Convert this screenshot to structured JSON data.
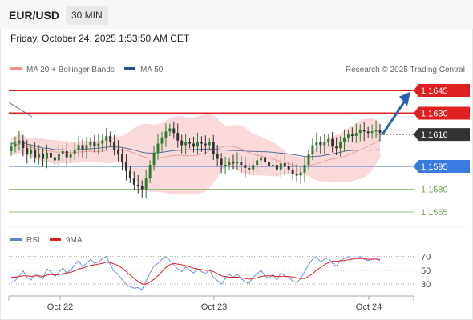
{
  "header": {
    "symbol": "EUR/USD",
    "timeframe": "30 MIN",
    "datetime": "Friday, October 24, 2025 1:53:50 AM CET"
  },
  "legend": {
    "ma20_bb": "MA 20 + Bollinger Bands",
    "ma50": "MA 50",
    "source": "Research © 2025 Trading Central",
    "rsi": "RSI",
    "ma9": "9MA"
  },
  "colors": {
    "resistance": "#e02020",
    "support": "#3a7be0",
    "minor_support": "#6aa84f",
    "current": "#333333",
    "candle_up": "#2e7d32",
    "candle_down": "#333333",
    "bollinger_fill": "#f6c9c9",
    "ma20": "#e8a0a0",
    "ma50": "#5a6e9a",
    "arrow": "#2b62b0",
    "rsi": "#6f8fd8",
    "ma9": "#e02020"
  },
  "chart_data": [
    {
      "type": "candlestick",
      "title": "EUR/USD 30 MIN",
      "y_range": [
        1.1555,
        1.1655
      ],
      "x_ticks": [
        "Oct 22",
        "Oct 23",
        "Oct 24"
      ],
      "levels": [
        {
          "label": "1.1645",
          "value": 1.1645,
          "kind": "resistance"
        },
        {
          "label": "1.1630",
          "value": 1.163,
          "kind": "resistance"
        },
        {
          "label": "1.1616",
          "value": 1.1616,
          "kind": "current"
        },
        {
          "label": "1.1595",
          "value": 1.1595,
          "kind": "support"
        },
        {
          "label": "1.1580",
          "value": 1.158,
          "kind": "minor_support"
        },
        {
          "label": "1.1565",
          "value": 1.1565,
          "kind": "minor_support"
        }
      ],
      "close_series": [
        1.1608,
        1.161,
        1.1612,
        1.1607,
        1.1603,
        1.1606,
        1.1601,
        1.1603,
        1.16,
        1.1604,
        1.1601,
        1.1599,
        1.1603,
        1.1605,
        1.1601,
        1.1603,
        1.1606,
        1.1609,
        1.1606,
        1.1609,
        1.1611,
        1.1608,
        1.161,
        1.1612,
        1.1615,
        1.1611,
        1.1606,
        1.1603,
        1.1598,
        1.1592,
        1.1587,
        1.1583,
        1.1582,
        1.158,
        1.1587,
        1.1596,
        1.1604,
        1.161,
        1.1614,
        1.1618,
        1.162,
        1.1617,
        1.1612,
        1.1609,
        1.1611,
        1.161,
        1.1608,
        1.1611,
        1.161,
        1.1609,
        1.1611,
        1.1603,
        1.16,
        1.1596,
        1.1596,
        1.1598,
        1.1597,
        1.1598,
        1.1596,
        1.1594,
        1.1593,
        1.1596,
        1.1599,
        1.1601,
        1.1598,
        1.1595,
        1.1596,
        1.1593,
        1.1597,
        1.1595,
        1.1593,
        1.159,
        1.1589,
        1.1591,
        1.1596,
        1.1603,
        1.1609,
        1.1611,
        1.1609,
        1.1611,
        1.1613,
        1.1608,
        1.1607,
        1.1611,
        1.1614,
        1.1616,
        1.1615,
        1.1617,
        1.1619,
        1.1618,
        1.1617,
        1.1618,
        1.1619,
        1.1617
      ],
      "forecast_arrow": {
        "from": 1.1616,
        "to": 1.1642
      }
    },
    {
      "type": "line",
      "title": "RSI",
      "y_ticks": [
        30,
        50,
        70
      ],
      "y_range": [
        15,
        80
      ],
      "series": [
        {
          "name": "RSI",
          "values": [
            32,
            35,
            42,
            49,
            40,
            36,
            45,
            41,
            38,
            52,
            48,
            41,
            47,
            53,
            46,
            50,
            58,
            64,
            55,
            60,
            66,
            60,
            62,
            67,
            70,
            58,
            48,
            44,
            36,
            30,
            26,
            24,
            25,
            22,
            34,
            46,
            56,
            60,
            66,
            70,
            64,
            58,
            52,
            48,
            55,
            50,
            46,
            52,
            48,
            45,
            51,
            40,
            35,
            30,
            38,
            44,
            40,
            44,
            38,
            33,
            31,
            40,
            45,
            50,
            42,
            38,
            44,
            36,
            46,
            42,
            40,
            34,
            32,
            38,
            48,
            58,
            66,
            70,
            62,
            66,
            68,
            60,
            56,
            64,
            67,
            70,
            66,
            68,
            70,
            66,
            64,
            66,
            68,
            64
          ]
        },
        {
          "name": "9MA",
          "values": [
            40,
            40,
            41,
            42,
            42,
            41,
            42,
            42,
            41,
            43,
            44,
            43,
            44,
            45,
            46,
            47,
            49,
            52,
            53,
            55,
            57,
            58,
            59,
            60,
            62,
            61,
            59,
            57,
            53,
            48,
            43,
            38,
            34,
            30,
            30,
            33,
            37,
            42,
            48,
            54,
            58,
            60,
            59,
            58,
            57,
            55,
            53,
            52,
            51,
            50,
            50,
            48,
            45,
            42,
            41,
            40,
            40,
            40,
            39,
            38,
            37,
            38,
            39,
            41,
            42,
            42,
            42,
            41,
            41,
            41,
            41,
            40,
            39,
            38,
            38,
            41,
            45,
            50,
            54,
            58,
            61,
            63,
            63,
            64,
            64,
            65,
            66,
            67,
            67,
            67,
            66,
            66,
            66,
            65
          ]
        }
      ]
    }
  ]
}
